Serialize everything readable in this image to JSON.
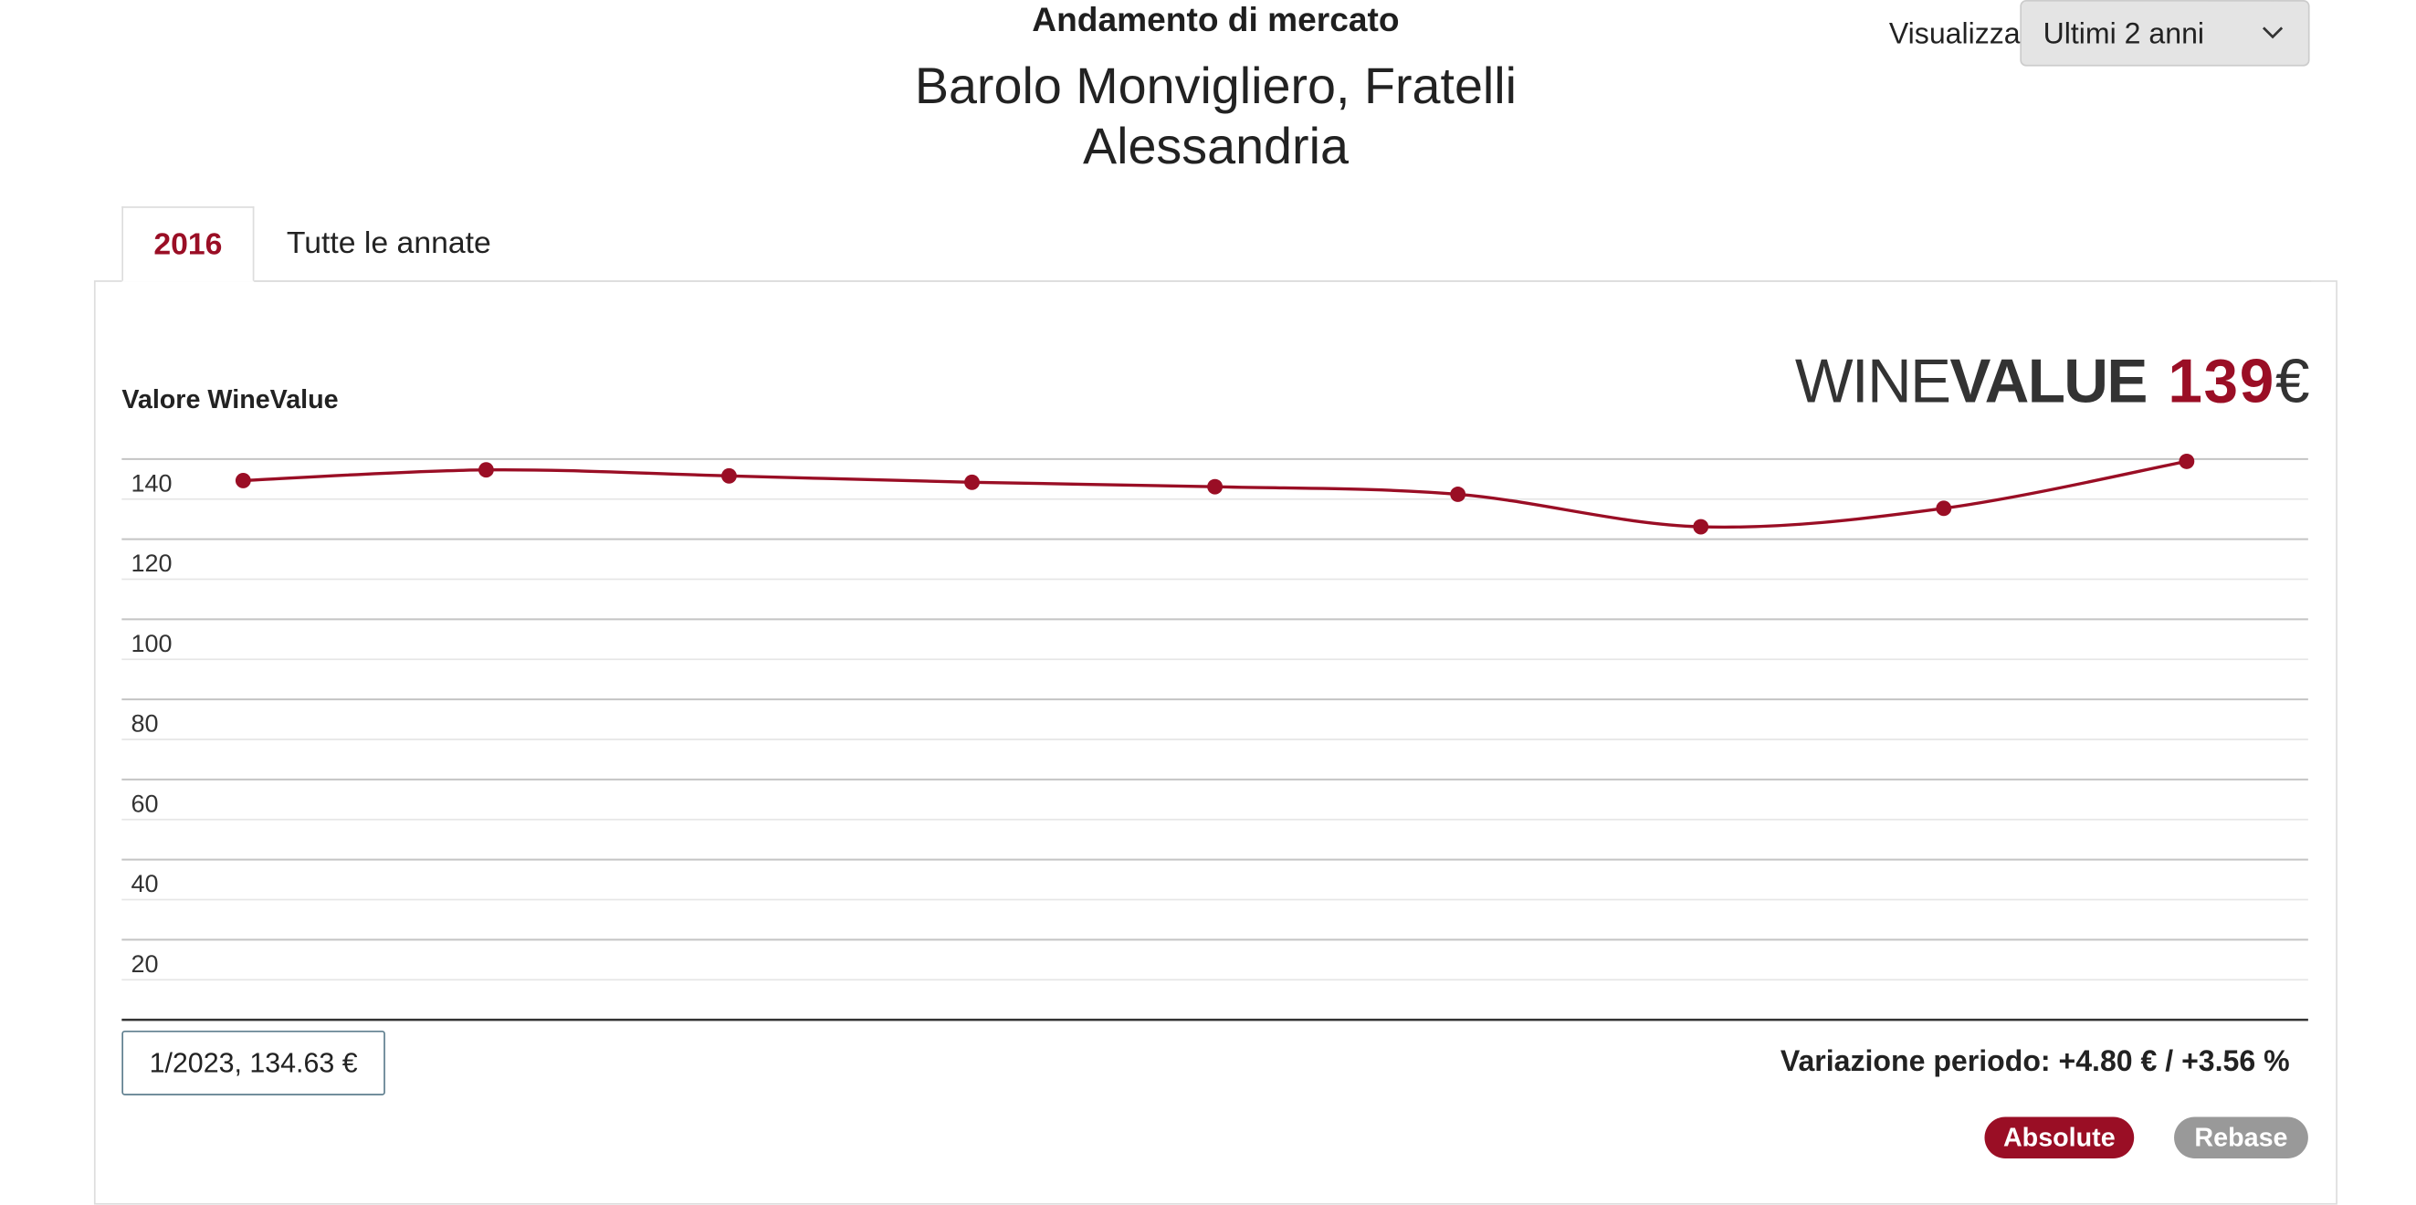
{
  "header": {
    "title": "Andamento di mercato",
    "subtitle": "Barolo Monvigliero, Fratelli Alessandria",
    "view_label": "Visualizza",
    "view_select": "Ultimi 2 anni"
  },
  "tabs": [
    "2016",
    "Tutte le annate"
  ],
  "brand": {
    "word1": "WINE",
    "word2": "VALUE",
    "value": 139,
    "currency": "€"
  },
  "tooltip": "1/2023, 134.63 €",
  "variation": "Variazione periodo: +4.80 € / +3.56 %",
  "buttons": [
    "Absolute",
    "Rebase"
  ],
  "chart_data": {
    "type": "line",
    "y_label": "Valore WineValue",
    "categories": [
      null,
      null,
      null,
      null,
      null,
      null,
      null,
      null,
      null
    ],
    "series": [
      {
        "name": "WineValue",
        "color": "#9a0e25",
        "values": [
          134.63,
          137.3,
          135.8,
          134.2,
          133.1,
          131.2,
          123.1,
          127.7,
          139.43
        ]
      }
    ],
    "ylim": [
      0,
      145
    ],
    "yticks": [
      20,
      40,
      60,
      80,
      100,
      120,
      140
    ],
    "minor_yticks": [
      10,
      30,
      50,
      70,
      90,
      110,
      130
    ],
    "grid": true
  }
}
